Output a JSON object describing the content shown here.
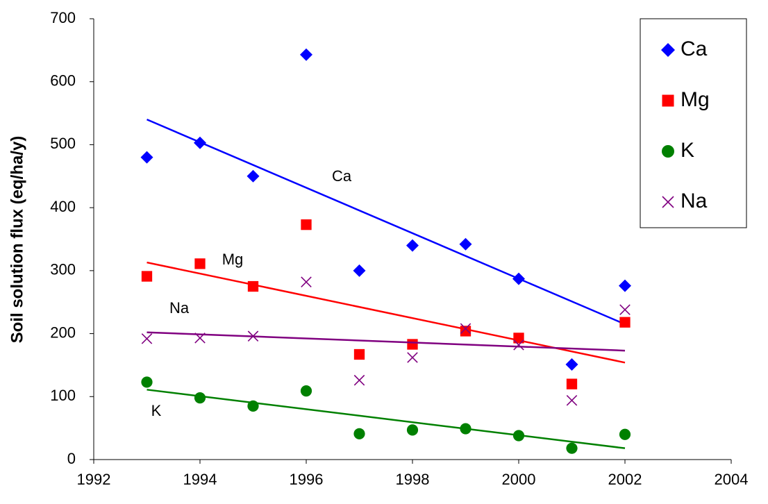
{
  "chart_data": {
    "type": "scatter",
    "ylabel": "Soil solution flux (eq/ha/y)",
    "x": [
      1993,
      1994,
      1995,
      1996,
      1997,
      1998,
      1999,
      2000,
      2001,
      2002
    ],
    "xlim": [
      1992,
      2004
    ],
    "xticks": [
      1992,
      1994,
      1996,
      1998,
      2000,
      2002,
      2004
    ],
    "ylim": [
      0,
      700
    ],
    "yticks": [
      0,
      100,
      200,
      300,
      400,
      500,
      600,
      700
    ],
    "legend": "top-right",
    "series": [
      {
        "name": "Ca",
        "color": "#0000ff",
        "marker": "diamond",
        "values": [
          480,
          503,
          450,
          643,
          300,
          340,
          342,
          287,
          151,
          276
        ],
        "trend": {
          "x": [
            1993,
            2002
          ],
          "values": [
            540,
            215
          ]
        }
      },
      {
        "name": "Mg",
        "color": "#ff0000",
        "marker": "square",
        "values": [
          291,
          311,
          275,
          373,
          167,
          183,
          204,
          193,
          120,
          218
        ],
        "trend": {
          "x": [
            1993,
            2002
          ],
          "values": [
            313,
            154
          ]
        }
      },
      {
        "name": "K",
        "color": "#008000",
        "marker": "circle",
        "values": [
          123,
          98,
          85,
          109,
          41,
          47,
          49,
          38,
          18,
          40
        ],
        "trend": {
          "x": [
            1993,
            2002
          ],
          "values": [
            111,
            18
          ]
        }
      },
      {
        "name": "Na",
        "color": "#800080",
        "marker": "x",
        "values": [
          192,
          193,
          196,
          282,
          126,
          162,
          208,
          182,
          94,
          238
        ],
        "trend": {
          "x": [
            1993,
            2002
          ],
          "values": [
            202,
            173
          ]
        }
      }
    ],
    "annotations": [
      "Ca",
      "Mg",
      "Na",
      "K"
    ]
  }
}
